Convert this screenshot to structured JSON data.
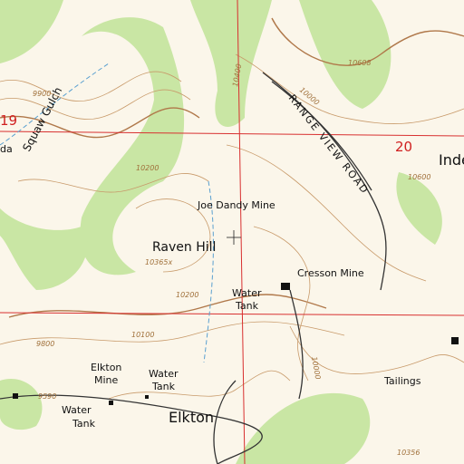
{
  "labels": [
    "Joe Dandy Mine",
    "Raven Hill",
    "10365x",
    "Water",
    "Tank",
    "Cresson Mine",
    "Elkton",
    "Mine",
    "Water",
    "Tank",
    "Water",
    "Tank",
    "Elkton",
    "Tailings",
    "RANGE VIEW ROAD",
    "Inde",
    "19",
    "20",
    "Squaw Gulch",
    "da"
  ],
  "contour_labels": [
    "9900",
    "10200",
    "10400",
    "10200",
    "10100",
    "9800",
    "10000",
    "9590",
    "10356",
    "10600",
    "10608",
    "10000"
  ]
}
